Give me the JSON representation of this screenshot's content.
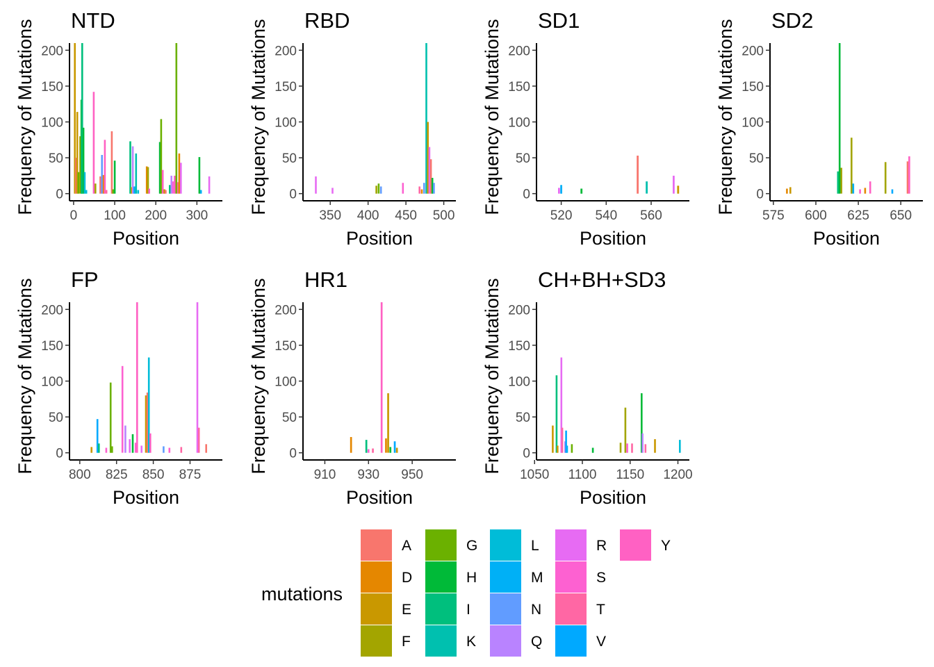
{
  "chart_data": {
    "type": "bar",
    "facet_layout": "wrap",
    "y_axis_label": "Frequency of Mutations",
    "x_axis_label": "Position",
    "grid": false,
    "legend": {
      "title": "mutations",
      "position": "bottom",
      "items": [
        {
          "label": "A",
          "color": "#F8766D"
        },
        {
          "label": "D",
          "color": "#E58700"
        },
        {
          "label": "E",
          "color": "#C99800"
        },
        {
          "label": "F",
          "color": "#A3A500"
        },
        {
          "label": "G",
          "color": "#6BB100"
        },
        {
          "label": "H",
          "color": "#00BA38"
        },
        {
          "label": "I",
          "color": "#00BF7D"
        },
        {
          "label": "K",
          "color": "#00C0AF"
        },
        {
          "label": "L",
          "color": "#00BCD8"
        },
        {
          "label": "M",
          "color": "#00B0F6"
        },
        {
          "label": "N",
          "color": "#619CFF"
        },
        {
          "label": "Q",
          "color": "#B983FF"
        },
        {
          "label": "R",
          "color": "#E76BF3"
        },
        {
          "label": "S",
          "color": "#FD61D1"
        },
        {
          "label": "T",
          "color": "#FF67A4"
        },
        {
          "label": "V",
          "color": "#00A9FF"
        },
        {
          "label": "Y",
          "color": "#FF61C3"
        }
      ]
    },
    "panels": [
      {
        "title": "NTD",
        "xlim": [
          -10,
          362
        ],
        "ylim": [
          -10,
          210
        ],
        "xticks": [
          0,
          100,
          200,
          300
        ],
        "yticks": [
          0,
          50,
          100,
          150,
          200
        ],
        "bars": [
          {
            "x": 3,
            "y": 210,
            "m": "E"
          },
          {
            "x": 6,
            "y": 50,
            "m": "A"
          },
          {
            "x": 9,
            "y": 114,
            "m": "E"
          },
          {
            "x": 12,
            "y": 30,
            "m": "G"
          },
          {
            "x": 16,
            "y": 80,
            "m": "F"
          },
          {
            "x": 19,
            "y": 131,
            "m": "H"
          },
          {
            "x": 21,
            "y": 210,
            "m": "I"
          },
          {
            "x": 24,
            "y": 92,
            "m": "H"
          },
          {
            "x": 27,
            "y": 30,
            "m": "L"
          },
          {
            "x": 31,
            "y": 5,
            "m": "L"
          },
          {
            "x": 49,
            "y": 142,
            "m": "Y"
          },
          {
            "x": 53,
            "y": 14,
            "m": "F"
          },
          {
            "x": 65,
            "y": 24,
            "m": "A"
          },
          {
            "x": 69,
            "y": 54,
            "m": "N"
          },
          {
            "x": 73,
            "y": 26,
            "m": "D"
          },
          {
            "x": 76,
            "y": 75,
            "m": "Y"
          },
          {
            "x": 80,
            "y": 5,
            "m": "T"
          },
          {
            "x": 93,
            "y": 87,
            "m": "A"
          },
          {
            "x": 96,
            "y": 6,
            "m": "G"
          },
          {
            "x": 100,
            "y": 46,
            "m": "H"
          },
          {
            "x": 138,
            "y": 73,
            "m": "I"
          },
          {
            "x": 141,
            "y": 9,
            "m": "E"
          },
          {
            "x": 144,
            "y": 66,
            "m": "Q"
          },
          {
            "x": 148,
            "y": 10,
            "m": "V"
          },
          {
            "x": 152,
            "y": 56,
            "m": "K"
          },
          {
            "x": 157,
            "y": 5,
            "m": "L"
          },
          {
            "x": 178,
            "y": 38,
            "m": "D"
          },
          {
            "x": 181,
            "y": 37,
            "m": "F"
          },
          {
            "x": 184,
            "y": 7,
            "m": "S"
          },
          {
            "x": 210,
            "y": 72,
            "m": "H"
          },
          {
            "x": 213,
            "y": 104,
            "m": "G"
          },
          {
            "x": 217,
            "y": 33,
            "m": "Y"
          },
          {
            "x": 221,
            "y": 6,
            "m": "E"
          },
          {
            "x": 224,
            "y": 5,
            "m": "A"
          },
          {
            "x": 234,
            "y": 12,
            "m": "I"
          },
          {
            "x": 238,
            "y": 25,
            "m": "Q"
          },
          {
            "x": 242,
            "y": 17,
            "m": "S"
          },
          {
            "x": 246,
            "y": 25,
            "m": "Y"
          },
          {
            "x": 250,
            "y": 210,
            "m": "G"
          },
          {
            "x": 254,
            "y": 16,
            "m": "T"
          },
          {
            "x": 257,
            "y": 56,
            "m": "D"
          },
          {
            "x": 261,
            "y": 43,
            "m": "R"
          },
          {
            "x": 306,
            "y": 51,
            "m": "H"
          },
          {
            "x": 310,
            "y": 5,
            "m": "M"
          },
          {
            "x": 330,
            "y": 24,
            "m": "R"
          }
        ]
      },
      {
        "title": "RBD",
        "xlim": [
          314,
          516
        ],
        "ylim": [
          -10,
          210
        ],
        "xticks": [
          350,
          400,
          450,
          500
        ],
        "yticks": [
          0,
          50,
          100,
          150,
          200
        ],
        "bars": [
          {
            "x": 331,
            "y": 24,
            "m": "R"
          },
          {
            "x": 353,
            "y": 8,
            "m": "R"
          },
          {
            "x": 411,
            "y": 11,
            "m": "F"
          },
          {
            "x": 414,
            "y": 14,
            "m": "G"
          },
          {
            "x": 417,
            "y": 10,
            "m": "N"
          },
          {
            "x": 446,
            "y": 15,
            "m": "S"
          },
          {
            "x": 468,
            "y": 10,
            "m": "T"
          },
          {
            "x": 471,
            "y": 6,
            "m": "D"
          },
          {
            "x": 474,
            "y": 15,
            "m": "N"
          },
          {
            "x": 477,
            "y": 210,
            "m": "K"
          },
          {
            "x": 479,
            "y": 100,
            "m": "E"
          },
          {
            "x": 481,
            "y": 65,
            "m": "R"
          },
          {
            "x": 483,
            "y": 48,
            "m": "A"
          },
          {
            "x": 485,
            "y": 22,
            "m": "H"
          },
          {
            "x": 487,
            "y": 15,
            "m": "N"
          }
        ]
      },
      {
        "title": "SD1",
        "xlim": [
          509,
          577
        ],
        "ylim": [
          -10,
          210
        ],
        "xticks": [
          520,
          540,
          560
        ],
        "yticks": [
          0,
          50,
          100,
          150,
          200
        ],
        "bars": [
          {
            "x": 519,
            "y": 8,
            "m": "R"
          },
          {
            "x": 520,
            "y": 12,
            "m": "M"
          },
          {
            "x": 529,
            "y": 7,
            "m": "H"
          },
          {
            "x": 554,
            "y": 53,
            "m": "A"
          },
          {
            "x": 558,
            "y": 17,
            "m": "K"
          },
          {
            "x": 570,
            "y": 25,
            "m": "R"
          },
          {
            "x": 572,
            "y": 11,
            "m": "E"
          }
        ]
      },
      {
        "title": "SD2",
        "xlim": [
          573,
          663
        ],
        "ylim": [
          -10,
          210
        ],
        "xticks": [
          575,
          600,
          625,
          650
        ],
        "yticks": [
          0,
          50,
          100,
          150,
          200
        ],
        "bars": [
          {
            "x": 583,
            "y": 7,
            "m": "D"
          },
          {
            "x": 585,
            "y": 9,
            "m": "E"
          },
          {
            "x": 613,
            "y": 31,
            "m": "I"
          },
          {
            "x": 614,
            "y": 210,
            "m": "H"
          },
          {
            "x": 615,
            "y": 36,
            "m": "F"
          },
          {
            "x": 621,
            "y": 78,
            "m": "F"
          },
          {
            "x": 622,
            "y": 14,
            "m": "M"
          },
          {
            "x": 626,
            "y": 6,
            "m": "S"
          },
          {
            "x": 629,
            "y": 8,
            "m": "D"
          },
          {
            "x": 632,
            "y": 17,
            "m": "Y"
          },
          {
            "x": 641,
            "y": 44,
            "m": "F"
          },
          {
            "x": 645,
            "y": 6,
            "m": "V"
          },
          {
            "x": 654,
            "y": 45,
            "m": "A"
          },
          {
            "x": 655,
            "y": 52,
            "m": "Y"
          }
        ]
      },
      {
        "title": "FP",
        "xlim": [
          793,
          897
        ],
        "ylim": [
          -10,
          210
        ],
        "xticks": [
          800,
          825,
          850,
          875
        ],
        "yticks": [
          0,
          50,
          100,
          150,
          200
        ],
        "bars": [
          {
            "x": 808,
            "y": 8,
            "m": "E"
          },
          {
            "x": 812,
            "y": 47,
            "m": "V"
          },
          {
            "x": 813,
            "y": 13,
            "m": "I"
          },
          {
            "x": 818,
            "y": 7,
            "m": "S"
          },
          {
            "x": 821,
            "y": 98,
            "m": "G"
          },
          {
            "x": 822,
            "y": 9,
            "m": "G"
          },
          {
            "x": 829,
            "y": 121,
            "m": "S"
          },
          {
            "x": 831,
            "y": 38,
            "m": "Q"
          },
          {
            "x": 834,
            "y": 19,
            "m": "R"
          },
          {
            "x": 836,
            "y": 26,
            "m": "H"
          },
          {
            "x": 838,
            "y": 14,
            "m": "S"
          },
          {
            "x": 839,
            "y": 210,
            "m": "Y"
          },
          {
            "x": 842,
            "y": 10,
            "m": "R"
          },
          {
            "x": 845,
            "y": 80,
            "m": "E"
          },
          {
            "x": 846,
            "y": 84,
            "m": "A"
          },
          {
            "x": 847,
            "y": 133,
            "m": "L"
          },
          {
            "x": 848,
            "y": 27,
            "m": "Y"
          },
          {
            "x": 857,
            "y": 9,
            "m": "N"
          },
          {
            "x": 861,
            "y": 7,
            "m": "S"
          },
          {
            "x": 869,
            "y": 8,
            "m": "T"
          },
          {
            "x": 880,
            "y": 210,
            "m": "R"
          },
          {
            "x": 881,
            "y": 35,
            "m": "T"
          },
          {
            "x": 886,
            "y": 12,
            "m": "A"
          }
        ]
      },
      {
        "title": "HR1",
        "xlim": [
          900,
          970
        ],
        "ylim": [
          -10,
          210
        ],
        "xticks": [
          910,
          930,
          950
        ],
        "yticks": [
          0,
          50,
          100,
          150,
          200
        ],
        "bars": [
          {
            "x": 922,
            "y": 22,
            "m": "D"
          },
          {
            "x": 929,
            "y": 18,
            "m": "I"
          },
          {
            "x": 930,
            "y": 5,
            "m": "S"
          },
          {
            "x": 932,
            "y": 6,
            "m": "T"
          },
          {
            "x": 936,
            "y": 210,
            "m": "Y"
          },
          {
            "x": 938,
            "y": 20,
            "m": "D"
          },
          {
            "x": 939,
            "y": 83,
            "m": "E"
          },
          {
            "x": 940,
            "y": 8,
            "m": "H"
          },
          {
            "x": 942,
            "y": 16,
            "m": "V"
          },
          {
            "x": 943,
            "y": 7,
            "m": "E"
          }
        ]
      },
      {
        "title": "CH+BH+SD3",
        "xlim": [
          1052,
          1212
        ],
        "ylim": [
          -10,
          210
        ],
        "xticks": [
          1050,
          1100,
          1150,
          1200
        ],
        "yticks": [
          0,
          50,
          100,
          150,
          200
        ],
        "bars": [
          {
            "x": 1069,
            "y": 38,
            "m": "E"
          },
          {
            "x": 1073,
            "y": 108,
            "m": "I"
          },
          {
            "x": 1074,
            "y": 10,
            "m": "E"
          },
          {
            "x": 1078,
            "y": 133,
            "m": "R"
          },
          {
            "x": 1079,
            "y": 35,
            "m": "T"
          },
          {
            "x": 1082,
            "y": 16,
            "m": "Q"
          },
          {
            "x": 1083,
            "y": 31,
            "m": "V"
          },
          {
            "x": 1084,
            "y": 10,
            "m": "M"
          },
          {
            "x": 1089,
            "y": 12,
            "m": "G"
          },
          {
            "x": 1111,
            "y": 7,
            "m": "H"
          },
          {
            "x": 1140,
            "y": 14,
            "m": "F"
          },
          {
            "x": 1145,
            "y": 63,
            "m": "F"
          },
          {
            "x": 1147,
            "y": 13,
            "m": "S"
          },
          {
            "x": 1152,
            "y": 13,
            "m": "T"
          },
          {
            "x": 1162,
            "y": 83,
            "m": "H"
          },
          {
            "x": 1163,
            "y": 27,
            "m": "Q"
          },
          {
            "x": 1166,
            "y": 12,
            "m": "T"
          },
          {
            "x": 1176,
            "y": 19,
            "m": "E"
          },
          {
            "x": 1202,
            "y": 18,
            "m": "L"
          }
        ]
      }
    ]
  }
}
